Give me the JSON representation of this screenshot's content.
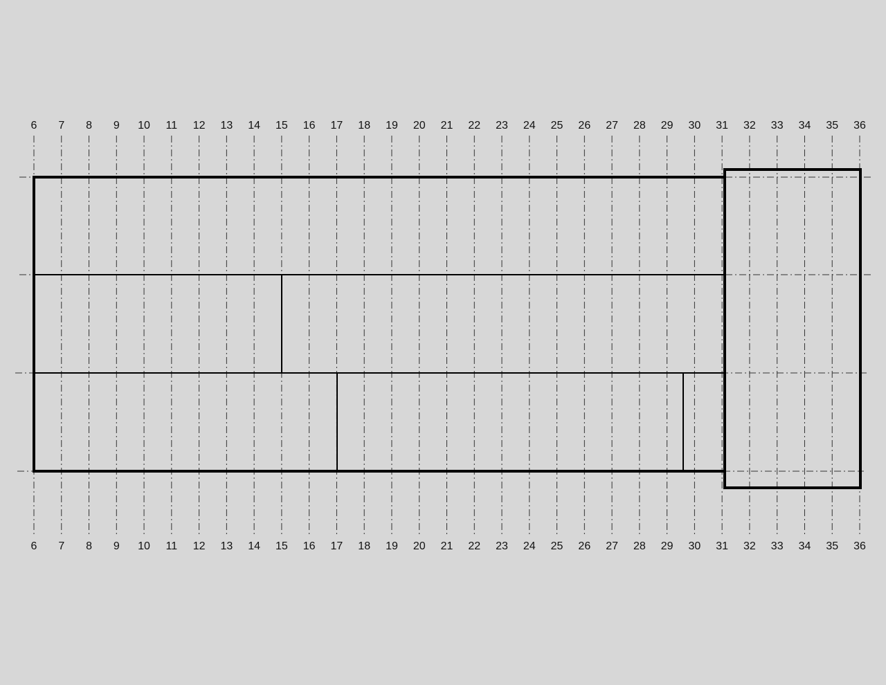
{
  "grid": {
    "columns": [
      "6",
      "7",
      "8",
      "9",
      "10",
      "11",
      "12",
      "13",
      "14",
      "15",
      "16",
      "17",
      "18",
      "19",
      "20",
      "21",
      "22",
      "23",
      "24",
      "25",
      "26",
      "27",
      "28",
      "29",
      "30",
      "31",
      "32",
      "33",
      "34",
      "35",
      "36"
    ]
  }
}
